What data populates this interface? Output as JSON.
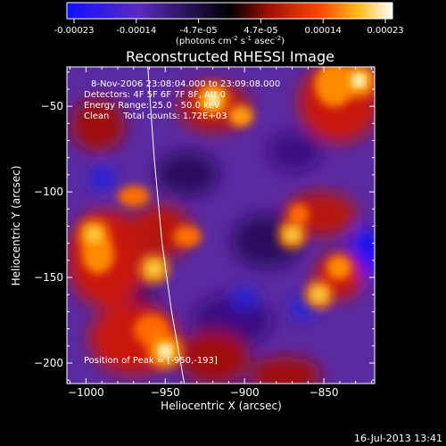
{
  "colorbar": {
    "tick_labels": [
      "-0.00023",
      "-0.00014",
      "-4.7e-05",
      "4.7e-05",
      "0.00014",
      "0.00023"
    ],
    "units": "(photons cm",
    "units_exp1": "-2",
    "units_mid": " s",
    "units_exp2": "-1",
    "units_mid2": " asec",
    "units_exp3": "-2",
    "units_end": ")",
    "colors": [
      "#1010ff",
      "#6a2aa6",
      "#000000",
      "#b81408",
      "#ff8a00",
      "#ffffff"
    ]
  },
  "chart_data": {
    "type": "heatmap",
    "title": "Reconstructed RHESSI Image",
    "xlabel": "Heliocentric X (arcsec)",
    "ylabel": "Heliocentric Y (arcsec)",
    "xlim": [
      -1012,
      -818
    ],
    "ylim": [
      -212,
      -27
    ],
    "x_ticks": [
      -1000,
      -950,
      -900,
      -850
    ],
    "y_ticks": [
      -50,
      -100,
      -150,
      -200
    ],
    "annotations": [
      "8-Nov-2006 23:08:04.000 to 23:09:08.000",
      "Detectors: 4F 5F 6F 7F 8F, Att 0",
      "Energy Range: 25.0 - 50.0 keV",
      "Clean     Total counts: 1.72E+03"
    ],
    "peak_label": "Position of Peak = [-950,-193]",
    "peak": [
      -950,
      -193
    ],
    "limb_points": [
      [
        -961,
        -27
      ],
      [
        -957,
        -80
      ],
      [
        -952,
        -130
      ],
      [
        -946,
        -170
      ],
      [
        -938,
        -212
      ]
    ],
    "hot_spots": [
      {
        "x": -950,
        "y": -193,
        "level": 1.0
      },
      {
        "x": -828,
        "y": -35,
        "level": 0.95
      },
      {
        "x": -920,
        "y": -46,
        "level": 0.85
      },
      {
        "x": -995,
        "y": -125,
        "level": 0.75
      },
      {
        "x": -957,
        "y": -145,
        "level": 0.7
      },
      {
        "x": -870,
        "y": -125,
        "level": 0.6
      },
      {
        "x": -853,
        "y": -160,
        "level": 0.6
      }
    ]
  },
  "footer_timestamp": "16-Jul-2013 13:41"
}
